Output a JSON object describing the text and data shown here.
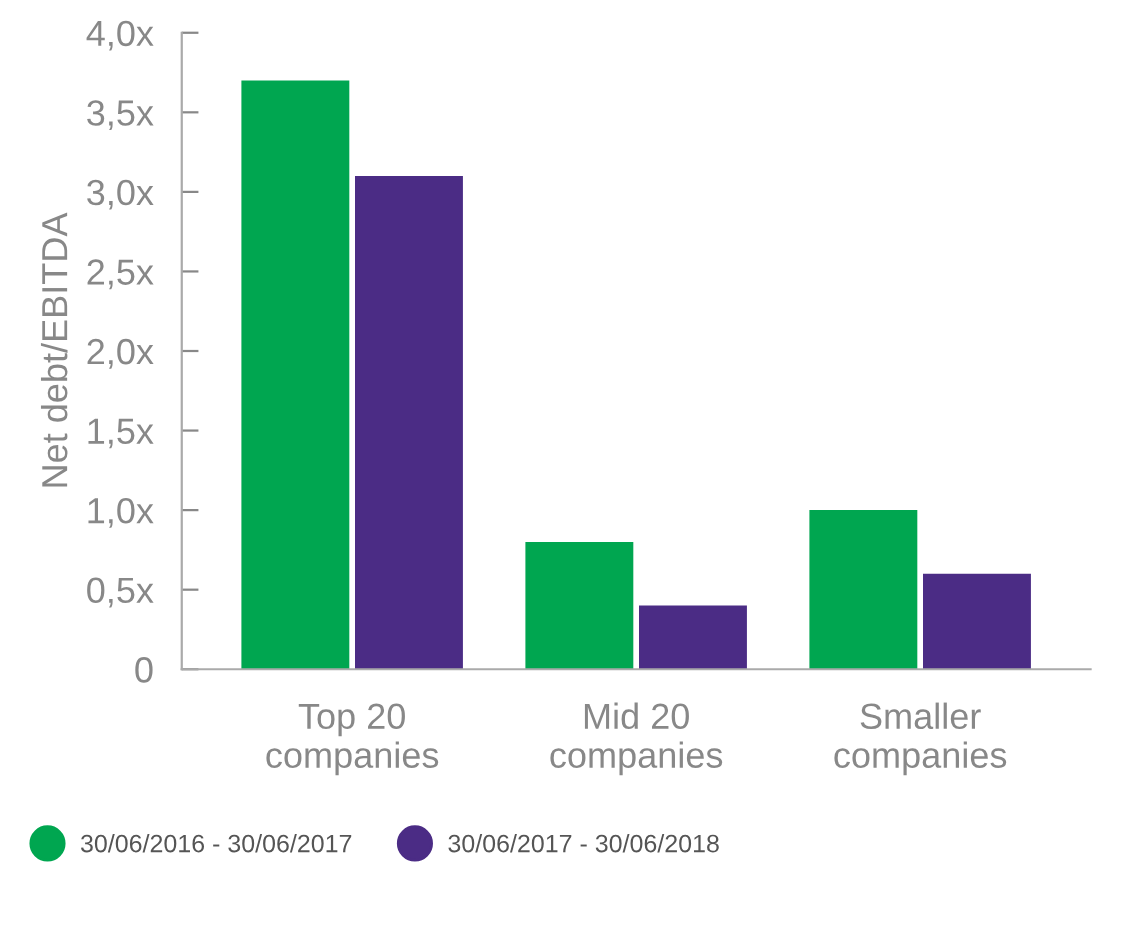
{
  "chart_data": {
    "type": "bar",
    "ylabel": "Net debt/EBITDA",
    "categories": [
      "Top 20\ncompanies",
      "Mid 20\ncompanies",
      "Smaller\ncompanies"
    ],
    "series": [
      {
        "name": "30/06/2016 - 30/06/2017",
        "color": "#00a650",
        "values": [
          3.7,
          0.8,
          1.0
        ]
      },
      {
        "name": "30/06/2017 - 30/06/2018",
        "color": "#4b2c85",
        "values": [
          3.1,
          0.4,
          0.6
        ]
      }
    ],
    "ylim": [
      0,
      4.0
    ],
    "yticks": [
      {
        "value": 0,
        "label": "0"
      },
      {
        "value": 0.5,
        "label": "0,5x"
      },
      {
        "value": 1.0,
        "label": "1,0x"
      },
      {
        "value": 1.5,
        "label": "1,5x"
      },
      {
        "value": 2.0,
        "label": "2,0x"
      },
      {
        "value": 2.5,
        "label": "2,5x"
      },
      {
        "value": 3.0,
        "label": "3,0x"
      },
      {
        "value": 3.5,
        "label": "3,5x"
      },
      {
        "value": 4.0,
        "label": "4,0x"
      }
    ],
    "legend": "bottom"
  }
}
